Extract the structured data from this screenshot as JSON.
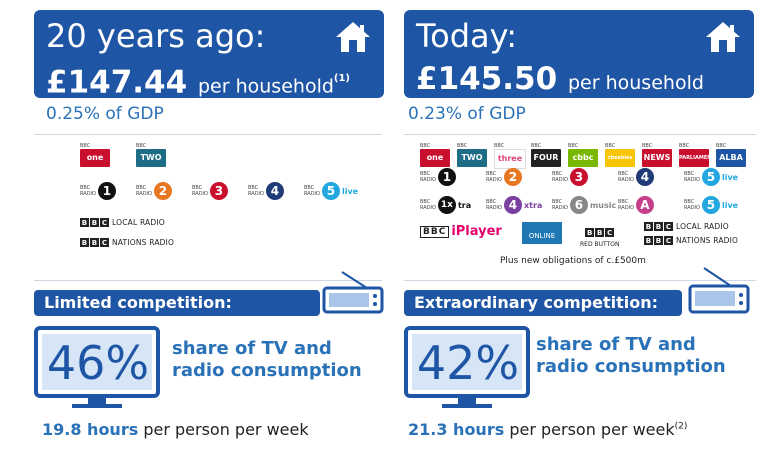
{
  "left": {
    "title": "20 years ago:",
    "amount": "£147.44",
    "unit": "per household",
    "note": "(1)",
    "gdp": "0.25% of GDP",
    "tv_channels": [
      {
        "label": "one",
        "color": "#c8102e"
      },
      {
        "label": "TWO",
        "color": "#1e6d86"
      }
    ],
    "radio_stations": [
      {
        "label": "1",
        "color": "#111111"
      },
      {
        "label": "2",
        "color": "#e87722"
      },
      {
        "label": "3",
        "color": "#c8102e"
      },
      {
        "label": "4",
        "color": "#1f3c78"
      },
      {
        "label": "5",
        "color": "#22a7e0",
        "suffix": "live"
      }
    ],
    "text_logos": [
      "LOCAL RADIO",
      "NATIONS RADIO"
    ],
    "competition": "Limited competition:",
    "share_pct": "46%",
    "share_text_1": "share of TV and",
    "share_text_2": "radio consumption",
    "hours_value": "19.8 hours",
    "hours_text": "per person per week",
    "hours_note": ""
  },
  "right": {
    "title": "Today:",
    "amount": "£145.50",
    "unit": "per household",
    "note": "",
    "gdp": "0.23% of GDP",
    "tv_channels": [
      {
        "label": "one",
        "color": "#c8102e"
      },
      {
        "label": "TWO",
        "color": "#1e6d86"
      },
      {
        "label": "three",
        "color": "#ffffff",
        "text": "#e0457b"
      },
      {
        "label": "FOUR",
        "color": "#222222"
      },
      {
        "label": "cbbc",
        "color": "#7ab800"
      },
      {
        "label": "cbeebies",
        "color": "#f7c600"
      },
      {
        "label": "NEWS",
        "color": "#c8102e"
      },
      {
        "label": "PARLIAMENT",
        "color": "#c8102e"
      },
      {
        "label": "ALBA",
        "color": "#1f55a5"
      }
    ],
    "radio_row1": [
      {
        "label": "1",
        "color": "#111111"
      },
      {
        "label": "2",
        "color": "#e87722"
      },
      {
        "label": "3",
        "color": "#c8102e"
      },
      {
        "label": "4",
        "color": "#1f3c78"
      },
      {
        "label": "5",
        "color": "#22a7e0",
        "suffix": "live"
      }
    ],
    "radio_row2": [
      {
        "label": "1x",
        "color": "#111111",
        "suffix": "tra"
      },
      {
        "label": "4",
        "color": "#7b3fa0",
        "suffix": "xtra"
      },
      {
        "label": "6",
        "color": "#888888",
        "suffix": "music"
      },
      {
        "label": "A",
        "color": "#c63f8a"
      },
      {
        "label": "5",
        "color": "#22a7e0",
        "suffix": "live"
      }
    ],
    "row3": {
      "bbc": "BBC",
      "iplayer": "iPlayer",
      "online": "ONLINE",
      "red_button": "RED BUTTON",
      "local": "LOCAL RADIO",
      "nations": "NATIONS RADIO"
    },
    "obligations": "Plus new obligations of c.£500m",
    "competition": "Extraordinary competition:",
    "share_pct": "42%",
    "share_text_1": "share of TV and",
    "share_text_2": "radio consumption",
    "hours_value": "21.3 hours",
    "hours_text": "per person per week",
    "hours_note": "(2)"
  },
  "colors": {
    "brand_blue": "#1f55a5",
    "text_blue": "#2a72b8"
  }
}
